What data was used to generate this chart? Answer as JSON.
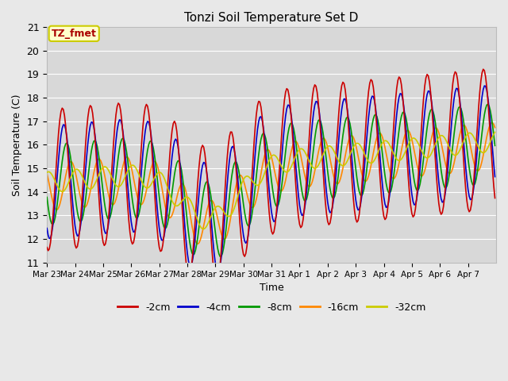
{
  "title": "Tonzi Soil Temperature Set D",
  "xlabel": "Time",
  "ylabel": "Soil Temperature (C)",
  "ylim": [
    11.0,
    21.0
  ],
  "yticks": [
    11.0,
    12.0,
    13.0,
    14.0,
    15.0,
    16.0,
    17.0,
    18.0,
    19.0,
    20.0,
    21.0
  ],
  "xtick_labels": [
    "Mar 23",
    "Mar 24",
    "Mar 25",
    "Mar 26",
    "Mar 27",
    "Mar 28",
    "Mar 29",
    "Mar 30",
    "Mar 31",
    "Apr 1",
    "Apr 2",
    "Apr 3",
    "Apr 4",
    "Apr 5",
    "Apr 6",
    "Apr 7"
  ],
  "series_labels": [
    "-2cm",
    "-4cm",
    "-8cm",
    "-16cm",
    "-32cm"
  ],
  "series_colors": [
    "#cc0000",
    "#0000cc",
    "#009900",
    "#ff8800",
    "#cccc00"
  ],
  "line_width": 1.2,
  "annotation_label": "TZ_fmet",
  "annotation_color": "#aa0000",
  "annotation_bg": "#ffffcc",
  "annotation_border": "#cccc00",
  "fig_color": "#e8e8e8",
  "plot_bg_color": "#d8d8d8",
  "grid_color": "#ffffff",
  "n_days": 16,
  "pts_per_day": 24
}
